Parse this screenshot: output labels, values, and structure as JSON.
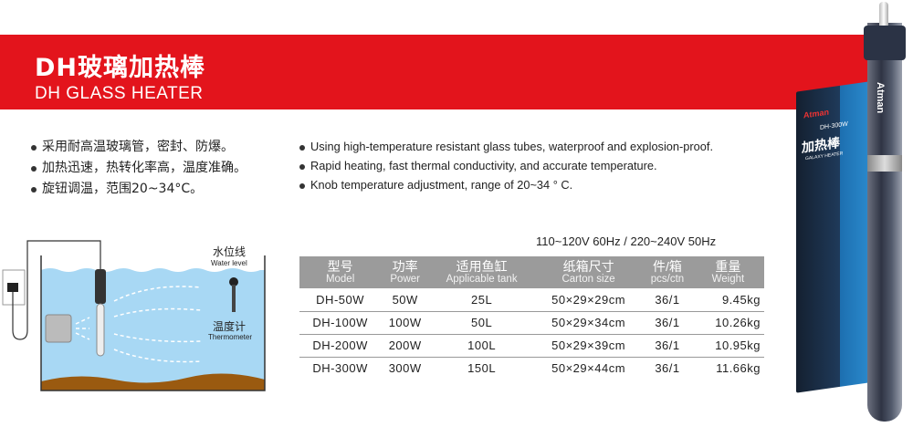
{
  "header": {
    "title_cn": "DH玻璃加热棒",
    "title_en": "DH GLASS HEATER",
    "accent": "#e3141c"
  },
  "features_cn": [
    "采用耐高温玻璃管，密封、防爆。",
    "加热迅速，热转化率高，温度准确。",
    "旋钮调温，范围20~34°C。"
  ],
  "features_en": [
    "Using high-temperature resistant glass tubes, waterproof and explosion-proof.",
    "Rapid heating, fast thermal conductivity, and accurate temperature.",
    "Knob temperature adjustment, range of 20~34 ° C."
  ],
  "diagram": {
    "water_level_cn": "水位线",
    "water_level_en": "Water level",
    "thermometer_cn": "温度计",
    "thermometer_en": "Thermometer"
  },
  "spec": {
    "voltage": "110~120V 60Hz / 220~240V 50Hz",
    "columns": [
      {
        "cn": "型号",
        "en": "Model"
      },
      {
        "cn": "功率",
        "en": "Power"
      },
      {
        "cn": "适用鱼缸",
        "en": "Applicable tank"
      },
      {
        "cn": "纸箱尺寸",
        "en": "Carton size"
      },
      {
        "cn": "件/箱",
        "en": "pcs/ctn"
      },
      {
        "cn": "重量",
        "en": "Weight"
      }
    ],
    "rows": [
      [
        "DH-50W",
        "50W",
        "25L",
        "50×29×29cm",
        "36/1",
        "9.45kg"
      ],
      [
        "DH-100W",
        "100W",
        "50L",
        "50×29×34cm",
        "36/1",
        "10.26kg"
      ],
      [
        "DH-200W",
        "200W",
        "100L",
        "50×29×39cm",
        "36/1",
        "10.95kg"
      ],
      [
        "DH-300W",
        "300W",
        "150L",
        "50×29×44cm",
        "36/1",
        "11.66kg"
      ]
    ]
  },
  "product": {
    "brand": "Atman",
    "model": "DH-300W",
    "name_cn": "加热棒",
    "name_en": "GALAXY HEATER"
  }
}
